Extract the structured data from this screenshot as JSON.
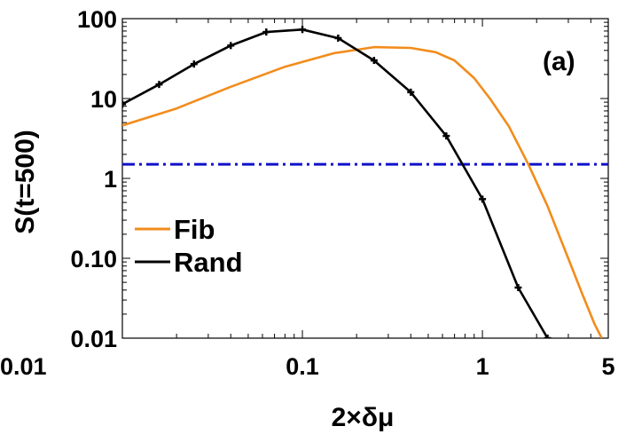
{
  "chart_data": {
    "type": "line",
    "title": "",
    "panel_label": "(a)",
    "xlabel": "2×δμ",
    "ylabel": "S(t=500)",
    "x_scale": "log",
    "y_scale": "log",
    "xlim": [
      0.01,
      5
    ],
    "ylim": [
      0.01,
      100
    ],
    "x_ticks": [
      {
        "value": 0.01,
        "label": "0.01"
      },
      {
        "value": 0.1,
        "label": "0.1"
      },
      {
        "value": 1,
        "label": "1"
      },
      {
        "value": 5,
        "label": "5"
      }
    ],
    "y_ticks": [
      {
        "value": 0.01,
        "label": "0.01"
      },
      {
        "value": 0.1,
        "label": "0.10"
      },
      {
        "value": 1,
        "label": "1"
      },
      {
        "value": 10,
        "label": "10"
      },
      {
        "value": 100,
        "label": "100"
      }
    ],
    "legend_position": "left",
    "series": [
      {
        "name": "Fib",
        "color": "#f28c1c",
        "markers": false,
        "x": [
          0.01,
          0.02,
          0.04,
          0.08,
          0.15,
          0.25,
          0.4,
          0.55,
          0.7,
          0.9,
          1.1,
          1.4,
          1.8,
          2.3,
          2.9,
          3.6,
          4.2,
          4.6
        ],
        "y": [
          4.6,
          7.5,
          14,
          25,
          37,
          44,
          43,
          38,
          30,
          18,
          10,
          4.5,
          1.5,
          0.45,
          0.12,
          0.035,
          0.015,
          0.01
        ]
      },
      {
        "name": "Rand",
        "color": "#000000",
        "markers": true,
        "x": [
          0.01,
          0.016,
          0.025,
          0.04,
          0.063,
          0.1,
          0.158,
          0.25,
          0.4,
          0.63,
          1.0,
          1.58,
          2.3
        ],
        "y": [
          8.5,
          15,
          27,
          46,
          68,
          73,
          57,
          30,
          12,
          3.4,
          0.55,
          0.043,
          0.01
        ]
      }
    ],
    "reference_lines": [
      {
        "orientation": "horizontal",
        "y": 1.5,
        "color": "#1010cc",
        "style": "dash-dot"
      }
    ]
  }
}
